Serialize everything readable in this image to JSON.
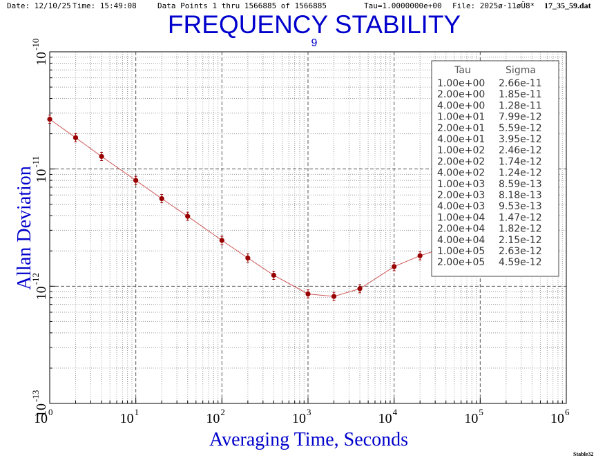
{
  "header": {
    "date": "Date: 12/10/25",
    "time": "Time: 15:49:08",
    "points": "Data Points 1 thru 1566885 of 1566885",
    "tau": "Tau=1.0000000e+00",
    "file_prefix": "File: 2025ø·11øÜ8*",
    "file_name": "17_35_59.dat"
  },
  "corner_label": "Stable32",
  "colors": {
    "title": "#0000cc",
    "data": "#990000",
    "line": "#cc5555"
  },
  "chart_data": {
    "type": "scatter",
    "title": "FREQUENCY STABILITY",
    "subtitle": "9",
    "xlabel": "Averaging Time, Seconds",
    "ylabel": "Allan Deviation",
    "x_scale": "log",
    "y_scale": "log",
    "xlim": [
      1,
      1000000
    ],
    "ylim": [
      1e-13,
      1e-10
    ],
    "grid": true,
    "x_ticks": [
      {
        "base": "10",
        "exp": "0"
      },
      {
        "base": "10",
        "exp": "1"
      },
      {
        "base": "10",
        "exp": "2"
      },
      {
        "base": "10",
        "exp": "3"
      },
      {
        "base": "10",
        "exp": "4"
      },
      {
        "base": "10",
        "exp": "5"
      },
      {
        "base": "10",
        "exp": "6"
      }
    ],
    "y_ticks": [
      {
        "base": "10",
        "exp": "-13"
      },
      {
        "base": "10",
        "exp": "-12"
      },
      {
        "base": "10",
        "exp": "-11"
      },
      {
        "base": "10",
        "exp": "-10"
      }
    ],
    "table": {
      "headers": [
        "Tau",
        "Sigma"
      ],
      "rows": [
        [
          "1.00e+00",
          "2.66e-11"
        ],
        [
          "2.00e+00",
          "1.85e-11"
        ],
        [
          "4.00e+00",
          "1.28e-11"
        ],
        [
          "1.00e+01",
          "7.99e-12"
        ],
        [
          "2.00e+01",
          "5.59e-12"
        ],
        [
          "4.00e+01",
          "3.95e-12"
        ],
        [
          "1.00e+02",
          "2.46e-12"
        ],
        [
          "2.00e+02",
          "1.74e-12"
        ],
        [
          "4.00e+02",
          "1.24e-12"
        ],
        [
          "1.00e+03",
          "8.59e-13"
        ],
        [
          "2.00e+03",
          "8.18e-13"
        ],
        [
          "4.00e+03",
          "9.53e-13"
        ],
        [
          "1.00e+04",
          "1.47e-12"
        ],
        [
          "2.00e+04",
          "1.82e-12"
        ],
        [
          "4.00e+04",
          "2.15e-12"
        ],
        [
          "1.00e+05",
          "2.63e-12"
        ],
        [
          "2.00e+05",
          "4.59e-12"
        ]
      ]
    },
    "series": [
      {
        "x": [
          1,
          2,
          4,
          10,
          20,
          40,
          100,
          200,
          400,
          1000,
          2000,
          4000,
          10000,
          20000,
          40000,
          100000,
          200000
        ],
        "y": [
          2.66e-11,
          1.85e-11,
          1.28e-11,
          7.99e-12,
          5.59e-12,
          3.95e-12,
          2.46e-12,
          1.74e-12,
          1.24e-12,
          8.59e-13,
          8.18e-13,
          9.53e-13,
          1.47e-12,
          1.82e-12,
          2.15e-12,
          2.63e-12,
          4.59e-12
        ]
      }
    ]
  }
}
